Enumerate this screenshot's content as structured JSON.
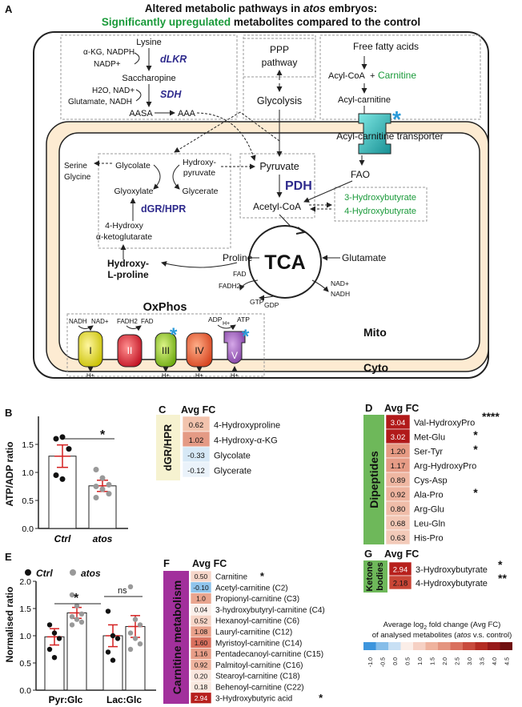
{
  "panel_a": {
    "letter": "A",
    "title_line1_pre": "Altered metabolic pathways in ",
    "title_line1_italic": "atos",
    "title_line1_post": " embryos:",
    "title_line2_green": "Significantly upregulated",
    "title_line2_rest": " metabolites compared to the control",
    "lysine_block": {
      "akg_nadph": "α-KG, NADPH",
      "nadp": "NADP+",
      "lysine": "Lysine",
      "dlkr": "dLKR",
      "saccharopine": "Saccharopine",
      "h2o_nad": "H2O, NAD+",
      "glutamate_nadh": "Glutamate, NADH",
      "sdh": "SDH",
      "aasa": "AASA",
      "aaa": "AAA"
    },
    "ppp": "PPP",
    "pathway": "pathway",
    "glycolysis": "Glycolysis",
    "free_fatty_acids": "Free fatty acids",
    "acyl_coa": "Acyl-CoA",
    "plus": "+",
    "carnitine": "Carnitine",
    "acyl_carnitine": "Acyl-carnitine",
    "acyl_carnitine_transporter": "Acyl-carnitine transporter",
    "serine": "Serine",
    "glycine": "Glycine",
    "glycolate": "Glycolate",
    "hydroxypyruvate_1": "Hydroxy-",
    "hydroxypyruvate_2": "pyruvate",
    "glyoxylate": "Glyoxylate",
    "glycerate": "Glycerate",
    "dgr_hpr": "dGR/HPR",
    "hydroxy_akg_1": "4-Hydroxy",
    "hydroxy_akg_2": "α-ketoglutarate",
    "hydroxy_lproline_1": "Hydroxy-",
    "hydroxy_lproline_2": "L-proline",
    "pyruvate": "Pyruvate",
    "pdh": "PDH",
    "acetyl_coa": "Acetyl-CoA",
    "fao": "FAO",
    "three_hb": "3-Hydroxybutyrate",
    "four_hb": "4-Hydroxybutyrate",
    "tca": "TCA",
    "proline": "Proline",
    "glutamate": "Glutamate",
    "fad": "FAD",
    "fadh2": "FADH2",
    "gtp": "GTP",
    "gdp": "GDP",
    "nad_plus": "NAD+",
    "nadh": "NADH",
    "oxphos": "OxPhos",
    "mito": "Mito",
    "cyto": "Cyto",
    "complexes": {
      "c1_in": "NADH",
      "c1_out": "NAD+",
      "c2_in": "FADH2",
      "c2_out": "FAD",
      "c5_in": "ADP",
      "c5_h": "H+",
      "c5_out": "ATP",
      "hplus": "H+",
      "labels": [
        "I",
        "II",
        "III",
        "IV",
        "V"
      ]
    },
    "asterisk": "*"
  },
  "panel_b": {
    "letter": "B",
    "ylabel": "ATP/ADP ratio",
    "yticks": [
      "1.5",
      "1.0",
      "0.5",
      "0.0"
    ],
    "star": "*",
    "categories": [
      "Ctrl",
      "atos"
    ]
  },
  "panel_c": {
    "letter": "C",
    "header": "Avg FC",
    "side_label": "dGR/HPR",
    "rows": [
      {
        "value": "0.62",
        "name": "4-Hydroxyproline",
        "color": "#f2c3ad"
      },
      {
        "value": "1.02",
        "name": "4-Hydroxy-α-KG",
        "color": "#e49a85"
      },
      {
        "value": "-0.33",
        "name": "Glycolate",
        "color": "#d6e8f6"
      },
      {
        "value": "-0.12",
        "name": "Glycerate",
        "color": "#eaf2fa"
      }
    ]
  },
  "panel_d": {
    "letter": "D",
    "header": "Avg FC",
    "side_label": "Dipeptides",
    "rows": [
      {
        "value": "3.04",
        "name": "Val-HydroxyPro",
        "star": "****",
        "color": "#b11a1a"
      },
      {
        "value": "3.02",
        "name": "Met-Glu",
        "star": "*",
        "color": "#b11a1a"
      },
      {
        "value": "1.20",
        "name": "Ser-Tyr",
        "star": "*",
        "color": "#e69a83"
      },
      {
        "value": "1.17",
        "name": "Arg-HydroxyPro",
        "star": "",
        "color": "#e69c86"
      },
      {
        "value": "0.89",
        "name": "Cys-Asp",
        "star": "",
        "color": "#efb7a2"
      },
      {
        "value": "0.92",
        "name": "Ala-Pro",
        "star": "*",
        "color": "#eeb39e"
      },
      {
        "value": "0.80",
        "name": "Arg-Glu",
        "star": "",
        "color": "#f0bda9"
      },
      {
        "value": "0.68",
        "name": "Leu-Gln",
        "star": "",
        "color": "#f3c7b5"
      },
      {
        "value": "0.63",
        "name": "His-Pro",
        "star": "",
        "color": "#f3cab9"
      }
    ]
  },
  "panel_e": {
    "letter": "E",
    "legend": [
      "Ctrl",
      "atos"
    ],
    "ylabel": "Normalised ratio",
    "yticks": [
      "2.0",
      "1.5",
      "1.0",
      "0.5",
      "0.0"
    ],
    "star": "*",
    "ns": "ns",
    "groups": [
      "Pyr:Glc",
      "Lac:Glc"
    ]
  },
  "panel_f": {
    "letter": "F",
    "header": "Avg FC",
    "side_label": "Carnitine metabolism",
    "rows": [
      {
        "value": "0.50",
        "name": "Carnitine",
        "star": "*",
        "color": "#f6d6c9"
      },
      {
        "value": "-0.10",
        "name": "Acetyl-carnitine (C2)",
        "star": "",
        "color": "#8fc4ec"
      },
      {
        "value": "1.0",
        "name": "Propionyl-carnitine (C3)",
        "star": "",
        "color": "#e9a58f"
      },
      {
        "value": "0.04",
        "name": "3-hydroxybutyryl-carnitine (C4)",
        "star": "",
        "color": "#fbefea"
      },
      {
        "value": "0.52",
        "name": "Hexanoyl-carnitine (C6)",
        "star": "",
        "color": "#f6d4c6"
      },
      {
        "value": "1.08",
        "name": "Lauryl-carnitine (C12)",
        "star": "",
        "color": "#e9a18b"
      },
      {
        "value": "1.60",
        "name": "Myristoyl-carnitine (C14)",
        "star": "",
        "color": "#d9705e"
      },
      {
        "value": "1.16",
        "name": "Pentadecanoyl-carnitine (C15)",
        "star": "",
        "color": "#e79d87"
      },
      {
        "value": "0.92",
        "name": "Palmitoyl-carnitine (C16)",
        "star": "",
        "color": "#eeb39e"
      },
      {
        "value": "0.20",
        "name": "Stearoyl-carnitine (C18)",
        "star": "",
        "color": "#f9e6dd"
      },
      {
        "value": "0.18",
        "name": "Behenoyl-carnitine (C22)",
        "star": "",
        "color": "#f9e8df"
      },
      {
        "value": "2.94",
        "name": "3-Hydroxybutyric acid",
        "star": "*",
        "color": "#b7201c"
      }
    ]
  },
  "panel_g": {
    "letter": "G",
    "header": "Avg FC",
    "side_label_1": "Ketone",
    "side_label_2": "bodies",
    "rows": [
      {
        "value": "2.94",
        "name": "3-Hydroxybutyrate",
        "star": "*",
        "color": "#b7201c"
      },
      {
        "value": "2.18",
        "name": "4-Hydroxybutyrate",
        "star": "**",
        "color": "#c94536"
      }
    ]
  },
  "legend": {
    "line1_pre": "Average log",
    "line1_sub": "2",
    "line1_post": " fold change (Avg FC)",
    "line2_pre": "of analysed metabolites (",
    "line2_italic": "atos",
    "line2_post": " v.s. control)",
    "ticks": [
      "-1.0",
      "-0.5",
      "0.0",
      "0.5",
      "1.0",
      "1.5",
      "2.0",
      "2.5",
      "3.0",
      "3.5",
      "4.0",
      "4.5"
    ],
    "colors": [
      "#3d95dd",
      "#86bde9",
      "#c8e0f4",
      "#fbeee8",
      "#f6d1c4",
      "#efb39e",
      "#e49580",
      "#d9705e",
      "#c84b3d",
      "#b42c23",
      "#961a1a",
      "#6f0f0f"
    ]
  },
  "chart_data": [
    {
      "type": "bar",
      "categories": [
        "Ctrl",
        "atos"
      ],
      "values": [
        1.29,
        0.76
      ],
      "errors": [
        0.2,
        0.1
      ],
      "points": [
        [
          1.6,
          1.63,
          1.42,
          0.95,
          0.88
        ],
        [
          1.05,
          0.9,
          0.78,
          0.75,
          0.7,
          0.62,
          0.55
        ]
      ],
      "ylabel": "ATP/ADP ratio",
      "ylim": [
        0,
        2.0
      ]
    },
    {
      "type": "bar",
      "categories": [
        "Pyr:Glc",
        "Lac:Glc"
      ],
      "series": [
        {
          "name": "Ctrl",
          "values": [
            0.98,
            1.0
          ],
          "errors": [
            0.15,
            0.2
          ],
          "points": [
            [
              1.2,
              1.05,
              0.95,
              0.75,
              0.6
            ],
            [
              1.45,
              1.0,
              0.95,
              0.7,
              0.55
            ]
          ]
        },
        {
          "name": "atos",
          "values": [
            1.42,
            1.17
          ],
          "errors": [
            0.1,
            0.2
          ],
          "points": [
            [
              1.75,
              1.55,
              1.4,
              1.35,
              1.3,
              1.25,
              1.2
            ],
            [
              1.9,
              1.3,
              1.2,
              1.05,
              0.95,
              0.85,
              0.75
            ]
          ]
        }
      ],
      "ylabel": "Normalised ratio",
      "ylim": [
        0,
        2.0
      ]
    }
  ]
}
